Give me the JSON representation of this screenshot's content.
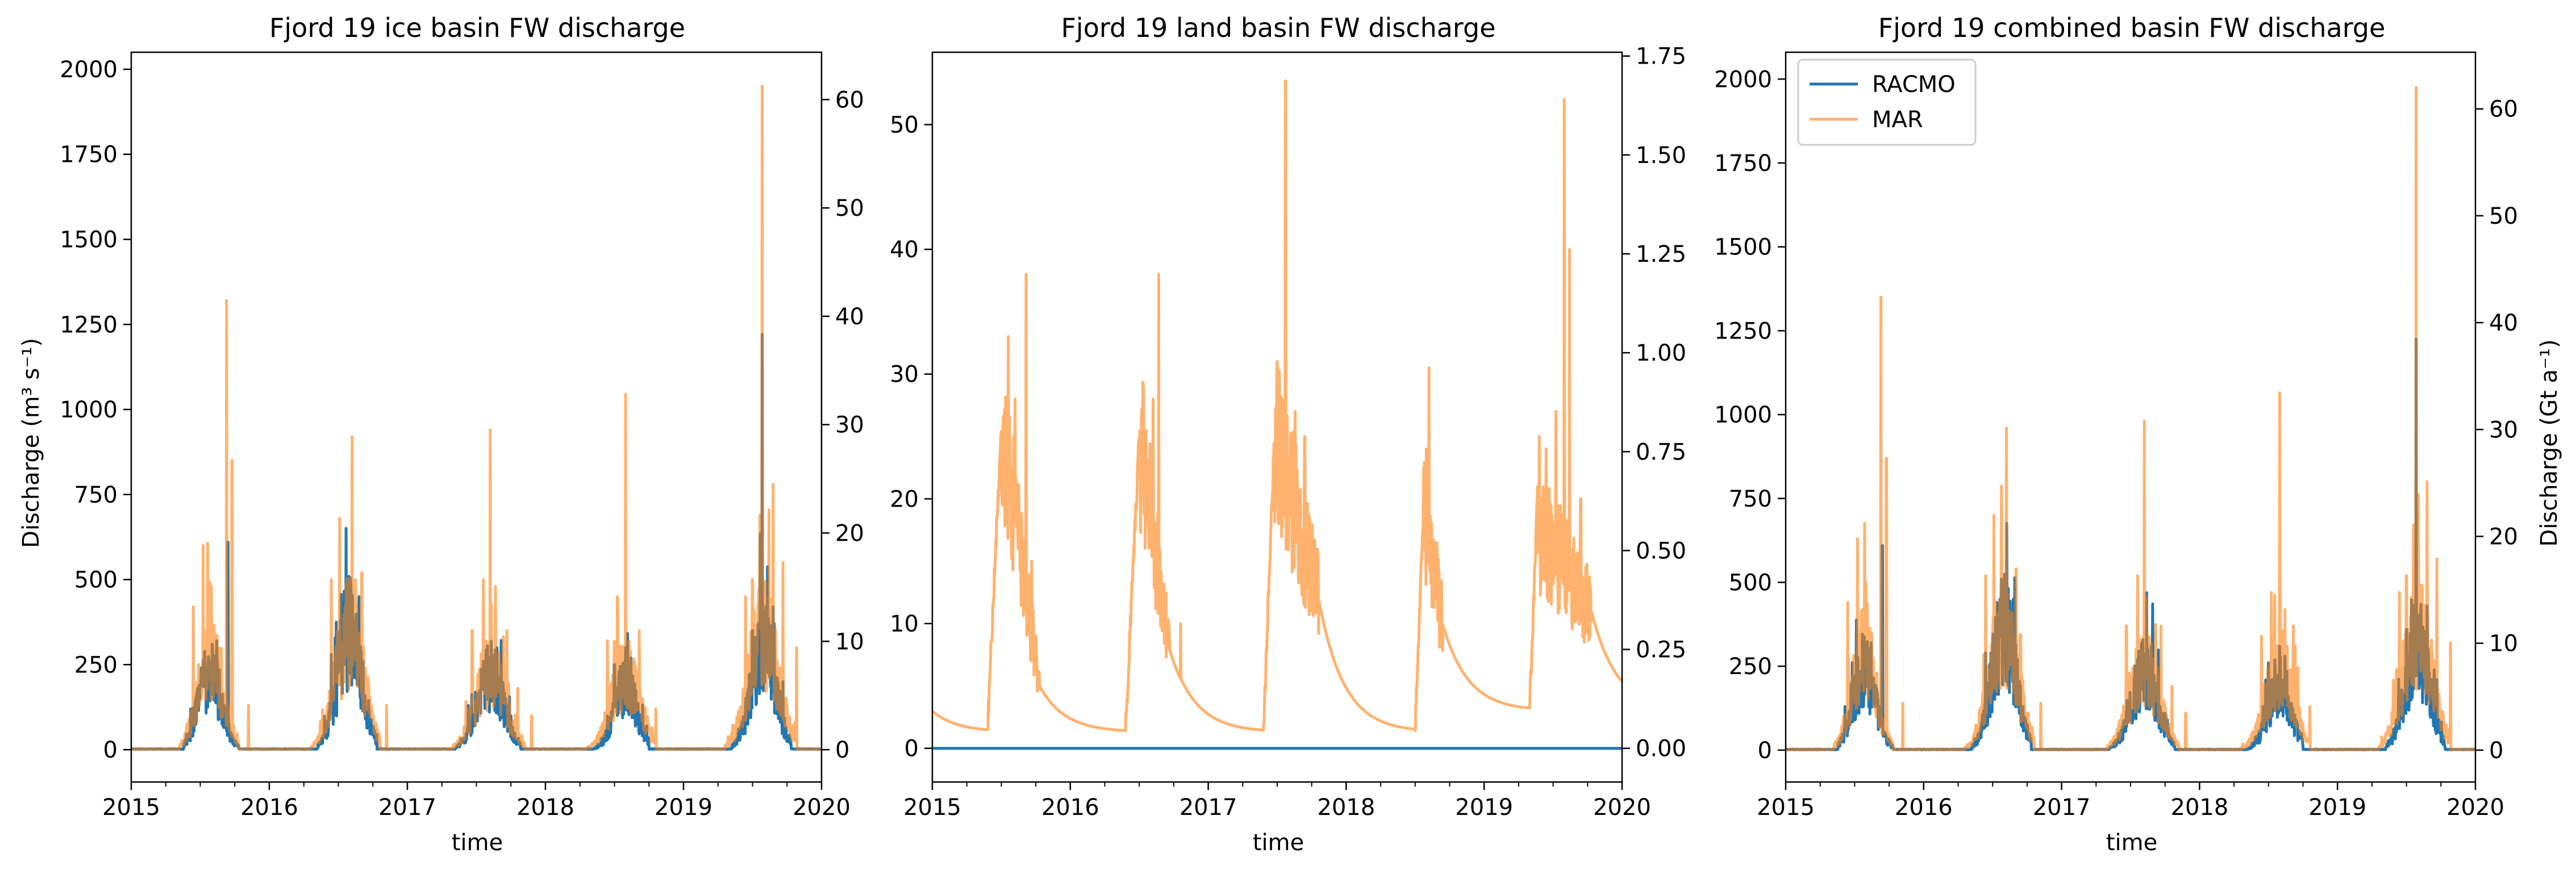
{
  "chart_data": [
    {
      "type": "line",
      "title": "Fjord 19 ice basin FW discharge",
      "xlabel": "time",
      "ylabel": "Discharge (m³ s⁻¹)",
      "y2label": "",
      "xlim": [
        2015,
        2020
      ],
      "ylim": [
        -95,
        2050
      ],
      "y2lim": [
        -2.9826,
        64.368
      ],
      "xticks": [
        "2015",
        "2016",
        "2017",
        "2018",
        "2019",
        "2020"
      ],
      "yticks": [
        0,
        250,
        500,
        750,
        1000,
        1250,
        1500,
        1750,
        2000
      ],
      "y2ticks": [
        0,
        10,
        20,
        30,
        40,
        50,
        60
      ],
      "legend": null,
      "series": [
        {
          "name": "RACMO",
          "color": "#1f77b4",
          "opacity": 1.0,
          "axis": "left",
          "seasons": [
            {
              "start": 2015.38,
              "center": 2015.57,
              "end": 2015.78,
              "peak": 250,
              "spikes": [
                [
                  2015.43,
                  120
                ],
                [
                  2015.5,
                  190
                ],
                [
                  2015.62,
                  320
                ],
                [
                  2015.7,
                  610
                ]
              ]
            },
            {
              "start": 2016.35,
              "center": 2016.58,
              "end": 2016.78,
              "peak": 380,
              "spikes": [
                [
                  2016.45,
                  280
                ],
                [
                  2016.55,
                  420
                ],
                [
                  2016.65,
                  450
                ],
                [
                  2016.72,
                  120
                ]
              ]
            },
            {
              "start": 2017.35,
              "center": 2017.6,
              "end": 2017.82,
              "peak": 240,
              "spikes": [
                [
                  2017.55,
                  260
                ],
                [
                  2017.65,
                  300
                ],
                [
                  2017.75,
                  100
                ]
              ]
            },
            {
              "start": 2018.35,
              "center": 2018.58,
              "end": 2018.75,
              "peak": 210,
              "spikes": [
                [
                  2018.5,
                  250
                ],
                [
                  2018.58,
                  300
                ],
                [
                  2018.62,
                  270
                ]
              ]
            },
            {
              "start": 2019.35,
              "center": 2019.58,
              "end": 2019.78,
              "peak": 330,
              "spikes": [
                [
                  2019.5,
                  350
                ],
                [
                  2019.57,
                  1220
                ],
                [
                  2019.65,
                  420
                ],
                [
                  2019.72,
                  200
                ]
              ]
            }
          ]
        },
        {
          "name": "MAR",
          "color": "#ff7f0e",
          "opacity": 0.6,
          "axis": "left",
          "seasons": [
            {
              "start": 2015.35,
              "center": 2015.57,
              "end": 2015.78,
              "peak": 300,
              "spikes": [
                [
                  2015.45,
                  420
                ],
                [
                  2015.52,
                  600
                ],
                [
                  2015.58,
                  480
                ],
                [
                  2015.69,
                  1320
                ],
                [
                  2015.73,
                  850
                ],
                [
                  2015.85,
                  130
                ]
              ]
            },
            {
              "start": 2016.3,
              "center": 2016.58,
              "end": 2016.8,
              "peak": 380,
              "spikes": [
                [
                  2016.45,
                  500
                ],
                [
                  2016.51,
                  680
                ],
                [
                  2016.6,
                  920
                ],
                [
                  2016.67,
                  520
                ],
                [
                  2016.85,
                  130
                ]
              ]
            },
            {
              "start": 2017.33,
              "center": 2017.6,
              "end": 2017.85,
              "peak": 260,
              "spikes": [
                [
                  2017.47,
                  350
                ],
                [
                  2017.55,
                  500
                ],
                [
                  2017.6,
                  940
                ],
                [
                  2017.72,
                  350
                ],
                [
                  2017.8,
                  180
                ],
                [
                  2017.9,
                  100
                ]
              ]
            },
            {
              "start": 2018.3,
              "center": 2018.58,
              "end": 2018.8,
              "peak": 250,
              "spikes": [
                [
                  2018.45,
                  320
                ],
                [
                  2018.52,
                  450
                ],
                [
                  2018.58,
                  1045
                ],
                [
                  2018.68,
                  350
                ],
                [
                  2018.8,
                  120
                ]
              ]
            },
            {
              "start": 2019.3,
              "center": 2019.58,
              "end": 2019.82,
              "peak": 380,
              "spikes": [
                [
                  2019.45,
                  450
                ],
                [
                  2019.5,
                  500
                ],
                [
                  2019.57,
                  1950
                ],
                [
                  2019.65,
                  780
                ],
                [
                  2019.72,
                  550
                ],
                [
                  2019.82,
                  300
                ]
              ]
            }
          ]
        }
      ]
    },
    {
      "type": "line",
      "title": "Fjord 19 land basin FW discharge",
      "xlabel": "time",
      "ylabel": "",
      "y2label": "",
      "xlim": [
        2015,
        2020
      ],
      "ylim": [
        -2.7,
        55.8
      ],
      "y2lim": [
        -0.0851,
        1.7596
      ],
      "xticks": [
        "2015",
        "2016",
        "2017",
        "2018",
        "2019",
        "2020"
      ],
      "yticks": [
        0,
        10,
        20,
        30,
        40,
        50
      ],
      "y2ticks": [
        "0.00",
        "0.25",
        "0.50",
        "0.75",
        "1.00",
        "1.25",
        "1.50",
        "1.75"
      ],
      "legend": null,
      "series": [
        {
          "name": "RACMO",
          "color": "#1f77b4",
          "opacity": 1.0,
          "axis": "left",
          "constant": 0
        },
        {
          "name": "MAR",
          "color": "#ff7f0e",
          "opacity": 0.6,
          "axis": "left",
          "baseline_start": 3.0,
          "seasons": [
            {
              "start": 2015.4,
              "rise": 2015.5,
              "end": 2015.78,
              "plateau": 26,
              "tail_end": 5,
              "decay_to": 1.3,
              "spikes": [
                [
                  2015.55,
                  33
                ],
                [
                  2015.6,
                  28
                ],
                [
                  2015.68,
                  38
                ],
                [
                  2015.72,
                  15
                ]
              ]
            },
            {
              "start": 2016.4,
              "rise": 2016.5,
              "end": 2016.72,
              "plateau": 25,
              "tail_end": 8,
              "decay_to": 1.3,
              "spikes": [
                [
                  2016.53,
                  29
                ],
                [
                  2016.6,
                  28
                ],
                [
                  2016.64,
                  38
                ],
                [
                  2016.7,
                  10
                ],
                [
                  2016.8,
                  10
                ]
              ]
            },
            {
              "start": 2017.4,
              "rise": 2017.48,
              "end": 2017.8,
              "plateau": 25,
              "tail_end": 12,
              "decay_to": 1.3,
              "spikes": [
                [
                  2017.5,
                  31
                ],
                [
                  2017.56,
                  53.5
                ],
                [
                  2017.63,
                  27
                ],
                [
                  2017.7,
                  25
                ]
              ]
            },
            {
              "start": 2018.5,
              "rise": 2018.56,
              "end": 2018.7,
              "plateau": 19,
              "tail_end": 10,
              "decay_to": 1.3,
              "spikes": [
                [
                  2018.58,
                  24
                ],
                [
                  2018.6,
                  30.5
                ],
                [
                  2018.65,
                  12
                ]
              ]
            },
            {
              "start": 2019.33,
              "rise": 2019.38,
              "end": 2019.78,
              "plateau": 18,
              "tail_end": 11,
              "decay_to": 3.0,
              "spikes": [
                [
                  2019.4,
                  25
                ],
                [
                  2019.45,
                  24
                ],
                [
                  2019.52,
                  27
                ],
                [
                  2019.58,
                  52
                ],
                [
                  2019.62,
                  40
                ],
                [
                  2019.7,
                  20
                ]
              ]
            }
          ]
        }
      ]
    },
    {
      "type": "line",
      "title": "Fjord 19 combined basin FW discharge",
      "xlabel": "time",
      "ylabel": "",
      "y2label": "Discharge (Gt a⁻¹)",
      "xlim": [
        2015,
        2020
      ],
      "ylim": [
        -95,
        2080
      ],
      "y2lim": [
        -2.9826,
        65.3
      ],
      "xticks": [
        "2015",
        "2016",
        "2017",
        "2018",
        "2019",
        "2020"
      ],
      "yticks": [
        0,
        250,
        500,
        750,
        1000,
        1250,
        1500,
        1750,
        2000
      ],
      "y2ticks": [
        0,
        10,
        20,
        30,
        40,
        50,
        60
      ],
      "legend": {
        "position": "upper-left",
        "entries": [
          "RACMO",
          "MAR"
        ]
      },
      "series": [
        {
          "name": "RACMO",
          "color": "#1f77b4",
          "opacity": 1.0,
          "axis": "left",
          "seasons": [
            {
              "start": 2015.38,
              "center": 2015.57,
              "end": 2015.78,
              "peak": 260,
              "spikes": [
                [
                  2015.43,
                  130
                ],
                [
                  2015.5,
                  200
                ],
                [
                  2015.62,
                  320
                ],
                [
                  2015.7,
                  610
                ]
              ]
            },
            {
              "start": 2016.35,
              "center": 2016.58,
              "end": 2016.78,
              "peak": 390,
              "spikes": [
                [
                  2016.45,
                  290
                ],
                [
                  2016.55,
                  420
                ],
                [
                  2016.65,
                  450
                ],
                [
                  2016.72,
                  130
                ]
              ]
            },
            {
              "start": 2017.35,
              "center": 2017.6,
              "end": 2017.82,
              "peak": 250,
              "spikes": [
                [
                  2017.55,
                  270
                ],
                [
                  2017.65,
                  310
                ],
                [
                  2017.75,
                  110
                ]
              ]
            },
            {
              "start": 2018.35,
              "center": 2018.58,
              "end": 2018.75,
              "peak": 220,
              "spikes": [
                [
                  2018.5,
                  260
                ],
                [
                  2018.58,
                  310
                ],
                [
                  2018.62,
                  280
                ]
              ]
            },
            {
              "start": 2019.35,
              "center": 2019.58,
              "end": 2019.78,
              "peak": 340,
              "spikes": [
                [
                  2019.5,
                  360
                ],
                [
                  2019.57,
                  1225
                ],
                [
                  2019.65,
                  430
                ],
                [
                  2019.72,
                  210
                ]
              ]
            }
          ]
        },
        {
          "name": "MAR",
          "color": "#ff7f0e",
          "opacity": 0.6,
          "axis": "left",
          "seasons": [
            {
              "start": 2015.35,
              "center": 2015.57,
              "end": 2015.78,
              "peak": 320,
              "spikes": [
                [
                  2015.45,
                  440
                ],
                [
                  2015.52,
                  630
                ],
                [
                  2015.58,
                  500
                ],
                [
                  2015.69,
                  1350
                ],
                [
                  2015.73,
                  870
                ],
                [
                  2015.85,
                  140
                ]
              ]
            },
            {
              "start": 2016.3,
              "center": 2016.58,
              "end": 2016.8,
              "peak": 400,
              "spikes": [
                [
                  2016.45,
                  520
                ],
                [
                  2016.51,
                  700
                ],
                [
                  2016.6,
                  960
                ],
                [
                  2016.67,
                  540
                ],
                [
                  2016.85,
                  140
                ]
              ]
            },
            {
              "start": 2017.33,
              "center": 2017.6,
              "end": 2017.85,
              "peak": 280,
              "spikes": [
                [
                  2017.47,
                  370
                ],
                [
                  2017.55,
                  520
                ],
                [
                  2017.6,
                  980
                ],
                [
                  2017.72,
                  370
                ],
                [
                  2017.8,
                  190
                ],
                [
                  2017.9,
                  110
                ]
              ]
            },
            {
              "start": 2018.3,
              "center": 2018.58,
              "end": 2018.8,
              "peak": 270,
              "spikes": [
                [
                  2018.45,
                  340
                ],
                [
                  2018.52,
                  470
                ],
                [
                  2018.58,
                  1065
                ],
                [
                  2018.68,
                  370
                ],
                [
                  2018.8,
                  130
                ]
              ]
            },
            {
              "start": 2019.3,
              "center": 2019.58,
              "end": 2019.82,
              "peak": 400,
              "spikes": [
                [
                  2019.45,
                  470
                ],
                [
                  2019.5,
                  520
                ],
                [
                  2019.57,
                  1975
                ],
                [
                  2019.65,
                  800
                ],
                [
                  2019.72,
                  570
                ],
                [
                  2019.82,
                  320
                ]
              ]
            }
          ]
        }
      ]
    }
  ]
}
